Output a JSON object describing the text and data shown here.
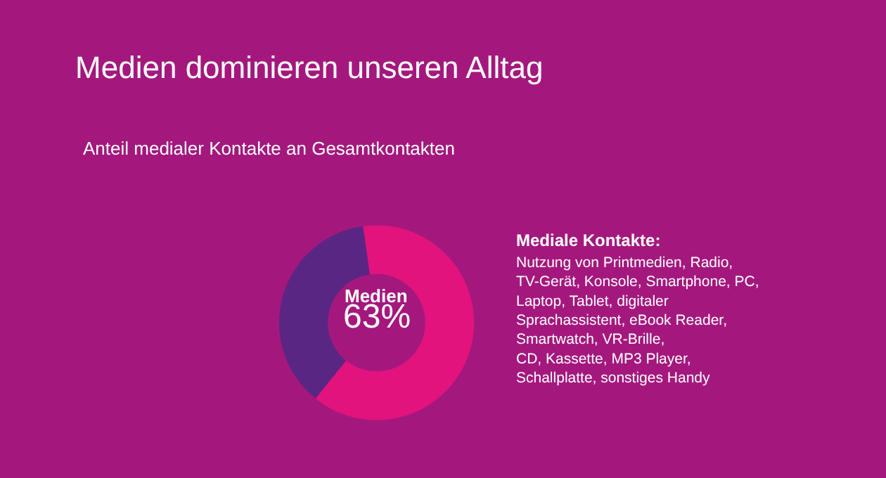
{
  "chart_data": {
    "type": "donut",
    "title": "Medien dominieren unseren Alltag",
    "subtitle": "Anteil medialer Kontakte an Gesamtkontakten",
    "categories": [
      "Medien",
      null
    ],
    "values": [
      63,
      37
    ],
    "colors": [
      "#e2137c",
      "#5a2683"
    ],
    "value_labels": [
      "63%",
      null
    ],
    "legend": false,
    "annotations": [
      "Mediale Kontakte:",
      "Nutzung von Printmedien, Radio,\nTV-Gerät, Konsole, Smartphone, PC,\nLaptop, Tablet, digitaler\nSprachassistent, eBook Reader,\nSmartwatch, VR-Brille,\nCD, Kassette, MP3 Player,\nSchallplatte, sonstiges Handy"
    ]
  }
}
